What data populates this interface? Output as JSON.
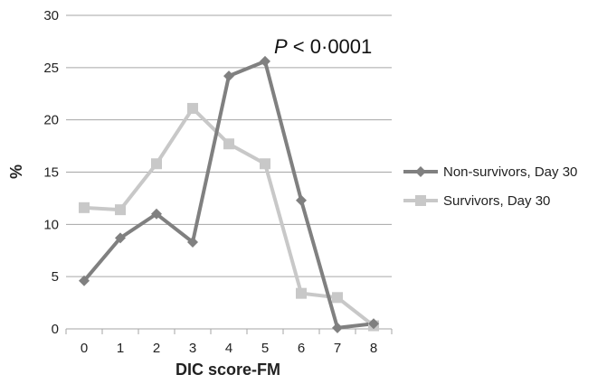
{
  "chart_data": {
    "type": "line",
    "x": [
      0,
      1,
      2,
      3,
      4,
      5,
      6,
      7,
      8
    ],
    "xlabel": "DIC score-FM",
    "ylabel": "%",
    "ylim": [
      0,
      30
    ],
    "yticks": [
      0,
      5,
      10,
      15,
      20,
      25,
      30
    ],
    "xticks": [
      0,
      1,
      2,
      3,
      4,
      5,
      6,
      7,
      8
    ],
    "grid": "horizontal",
    "legend": "right",
    "annotation": {
      "p_symbol": "P",
      "text": " < 0·0001"
    },
    "series": [
      {
        "name": "Non-survivors, Day 30",
        "marker": "diamond",
        "color": "#808080",
        "values": [
          4.6,
          8.7,
          11.0,
          8.3,
          24.2,
          25.6,
          12.3,
          0.1,
          0.5
        ]
      },
      {
        "name": "Survivors, Day 30",
        "marker": "square",
        "color": "#c8c8c8",
        "values": [
          11.6,
          11.4,
          15.8,
          21.1,
          17.7,
          15.8,
          3.4,
          3.0,
          0.3
        ]
      }
    ]
  }
}
